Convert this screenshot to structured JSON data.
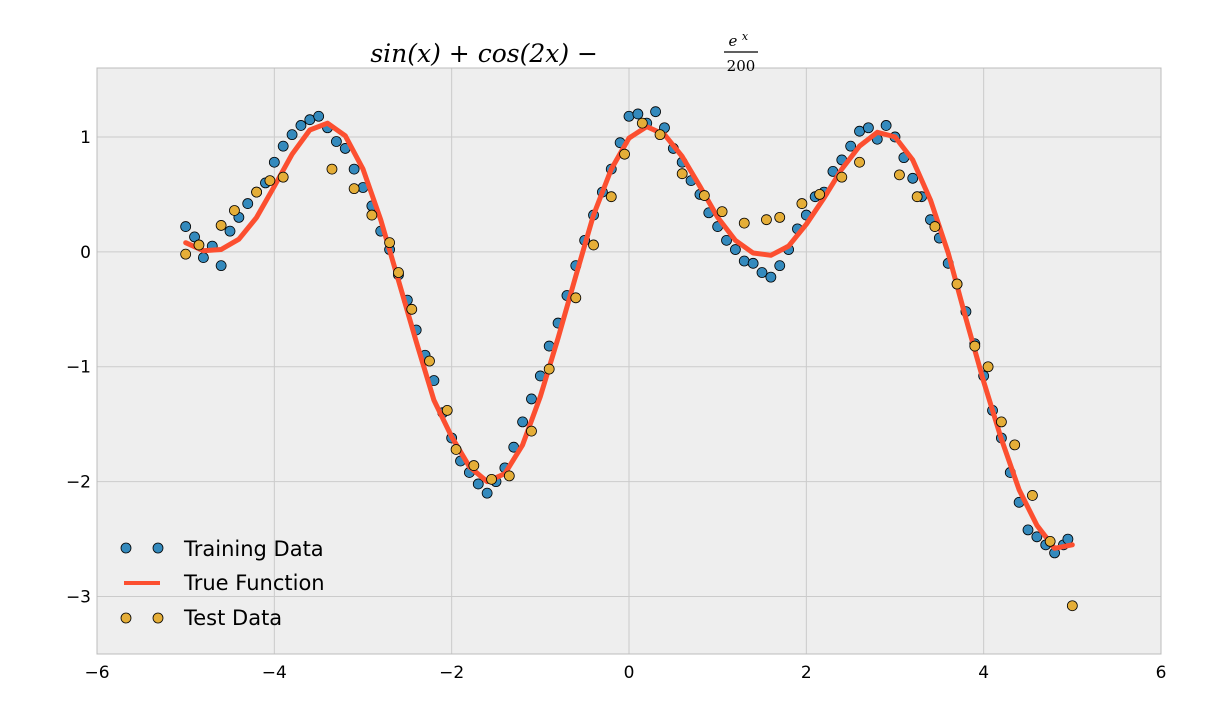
{
  "chart_data": {
    "type": "scatter",
    "title": "sin(x) + cos(2x) − e^x / 200",
    "title_parts": {
      "main": "sin(x) + cos(2x) −",
      "numerator": "e",
      "exponent": "x",
      "denominator": "200"
    },
    "xlabel": "",
    "ylabel": "",
    "xlim": [
      -6,
      6
    ],
    "ylim": [
      -3.5,
      1.6
    ],
    "xticks": [
      -6,
      -4,
      -2,
      0,
      2,
      4,
      6
    ],
    "xtick_labels": [
      "−6",
      "−4",
      "−2",
      "0",
      "2",
      "4",
      "6"
    ],
    "yticks": [
      1,
      0,
      -1,
      -2,
      -3
    ],
    "ytick_labels": [
      "1",
      "0",
      "−1",
      "−2",
      "−3"
    ],
    "grid": true,
    "legend_position": "bottom-left",
    "series": [
      {
        "name": "Training Data",
        "kind": "markers",
        "color": "#348ABD",
        "x": [
          -5.0,
          -4.9,
          -4.8,
          -4.7,
          -4.6,
          -4.5,
          -4.4,
          -4.3,
          -4.2,
          -4.1,
          -4.0,
          -3.9,
          -3.8,
          -3.7,
          -3.6,
          -3.5,
          -3.4,
          -3.3,
          -3.2,
          -3.1,
          -3.0,
          -2.9,
          -2.8,
          -2.7,
          -2.6,
          -2.5,
          -2.4,
          -2.3,
          -2.2,
          -2.1,
          -2.0,
          -1.9,
          -1.8,
          -1.7,
          -1.6,
          -1.5,
          -1.4,
          -1.3,
          -1.2,
          -1.1,
          -1.0,
          -0.9,
          -0.8,
          -0.7,
          -0.6,
          -0.5,
          -0.4,
          -0.3,
          -0.2,
          -0.1,
          0.0,
          0.1,
          0.2,
          0.3,
          0.4,
          0.5,
          0.6,
          0.7,
          0.8,
          0.9,
          1.0,
          1.1,
          1.2,
          1.3,
          1.4,
          1.5,
          1.6,
          1.7,
          1.8,
          1.9,
          2.0,
          2.1,
          2.2,
          2.3,
          2.4,
          2.5,
          2.6,
          2.7,
          2.8,
          2.9,
          3.0,
          3.1,
          3.2,
          3.3,
          3.4,
          3.5,
          3.6,
          3.7,
          3.8,
          3.9,
          4.0,
          4.1,
          4.2,
          4.3,
          4.4,
          4.5,
          4.6,
          4.7,
          4.8,
          4.9,
          4.95
        ],
        "y": [
          0.22,
          0.13,
          -0.05,
          0.05,
          -0.12,
          0.18,
          0.3,
          0.42,
          0.52,
          0.6,
          0.78,
          0.92,
          1.02,
          1.1,
          1.15,
          1.18,
          1.08,
          0.96,
          0.9,
          0.72,
          0.56,
          0.4,
          0.18,
          0.02,
          -0.2,
          -0.42,
          -0.68,
          -0.9,
          -1.12,
          -1.4,
          -1.62,
          -1.82,
          -1.92,
          -2.02,
          -2.1,
          -2.0,
          -1.88,
          -1.7,
          -1.48,
          -1.28,
          -1.08,
          -0.82,
          -0.62,
          -0.38,
          -0.12,
          0.1,
          0.32,
          0.52,
          0.72,
          0.95,
          1.18,
          1.2,
          1.12,
          1.22,
          1.08,
          0.9,
          0.78,
          0.62,
          0.5,
          0.34,
          0.22,
          0.1,
          0.02,
          -0.08,
          -0.1,
          -0.18,
          -0.22,
          -0.12,
          0.02,
          0.2,
          0.32,
          0.48,
          0.52,
          0.7,
          0.8,
          0.92,
          1.05,
          1.08,
          0.98,
          1.1,
          1.0,
          0.82,
          0.64,
          0.48,
          0.28,
          0.12,
          -0.1,
          -0.28,
          -0.52,
          -0.8,
          -1.08,
          -1.38,
          -1.62,
          -1.92,
          -2.18,
          -2.42,
          -2.48,
          -2.55,
          -2.62,
          -2.55,
          -2.5
        ]
      },
      {
        "name": "True Function",
        "kind": "line",
        "color": "#FC4F30",
        "x": [
          -5.0,
          -4.8,
          -4.6,
          -4.4,
          -4.2,
          -4.0,
          -3.8,
          -3.6,
          -3.4,
          -3.2,
          -3.0,
          -2.8,
          -2.6,
          -2.4,
          -2.2,
          -2.0,
          -1.8,
          -1.6,
          -1.4,
          -1.2,
          -1.0,
          -0.8,
          -0.6,
          -0.4,
          -0.2,
          0.0,
          0.2,
          0.4,
          0.6,
          0.8,
          1.0,
          1.2,
          1.4,
          1.6,
          1.8,
          2.0,
          2.2,
          2.4,
          2.6,
          2.8,
          3.0,
          3.2,
          3.4,
          3.6,
          3.8,
          4.0,
          4.2,
          4.4,
          4.6,
          4.8,
          5.0
        ],
        "y": [
          0.08,
          0.01,
          0.02,
          0.11,
          0.3,
          0.57,
          0.85,
          1.06,
          1.12,
          1.01,
          0.72,
          0.28,
          -0.25,
          -0.78,
          -1.29,
          -1.61,
          -1.87,
          -2.0,
          -1.93,
          -1.68,
          -1.26,
          -0.75,
          -0.21,
          0.32,
          0.72,
          0.99,
          1.09,
          1.02,
          0.83,
          0.57,
          0.3,
          0.1,
          -0.01,
          -0.03,
          0.05,
          0.24,
          0.47,
          0.72,
          0.92,
          1.04,
          1.0,
          0.8,
          0.45,
          -0.01,
          -0.58,
          -1.13,
          -1.63,
          -2.07,
          -2.38,
          -2.58,
          -2.55
        ]
      },
      {
        "name": "Test Data",
        "kind": "markers",
        "color": "#E5AE38",
        "x": [
          -5.0,
          -4.85,
          -4.6,
          -4.45,
          -4.2,
          -4.05,
          -3.9,
          -3.35,
          -3.1,
          -2.9,
          -2.7,
          -2.6,
          -2.45,
          -2.25,
          -2.05,
          -1.95,
          -1.75,
          -1.55,
          -1.35,
          -1.1,
          -0.9,
          -0.6,
          -0.4,
          -0.2,
          -0.05,
          0.15,
          0.35,
          0.6,
          0.85,
          1.05,
          1.3,
          1.55,
          1.7,
          1.95,
          2.15,
          2.4,
          2.6,
          3.05,
          3.25,
          3.45,
          3.7,
          3.9,
          4.05,
          4.2,
          4.35,
          4.55,
          4.75,
          5.0
        ],
        "y": [
          -0.02,
          0.06,
          0.23,
          0.36,
          0.52,
          0.62,
          0.65,
          0.72,
          0.55,
          0.32,
          0.08,
          -0.18,
          -0.5,
          -0.95,
          -1.38,
          -1.72,
          -1.86,
          -1.98,
          -1.95,
          -1.56,
          -1.02,
          -0.4,
          0.06,
          0.48,
          0.85,
          1.12,
          1.02,
          0.68,
          0.49,
          0.35,
          0.25,
          0.28,
          0.3,
          0.42,
          0.5,
          0.65,
          0.78,
          0.67,
          0.48,
          0.22,
          -0.28,
          -0.82,
          -1.0,
          -1.48,
          -1.68,
          -2.12,
          -2.52,
          -3.08
        ]
      }
    ]
  }
}
